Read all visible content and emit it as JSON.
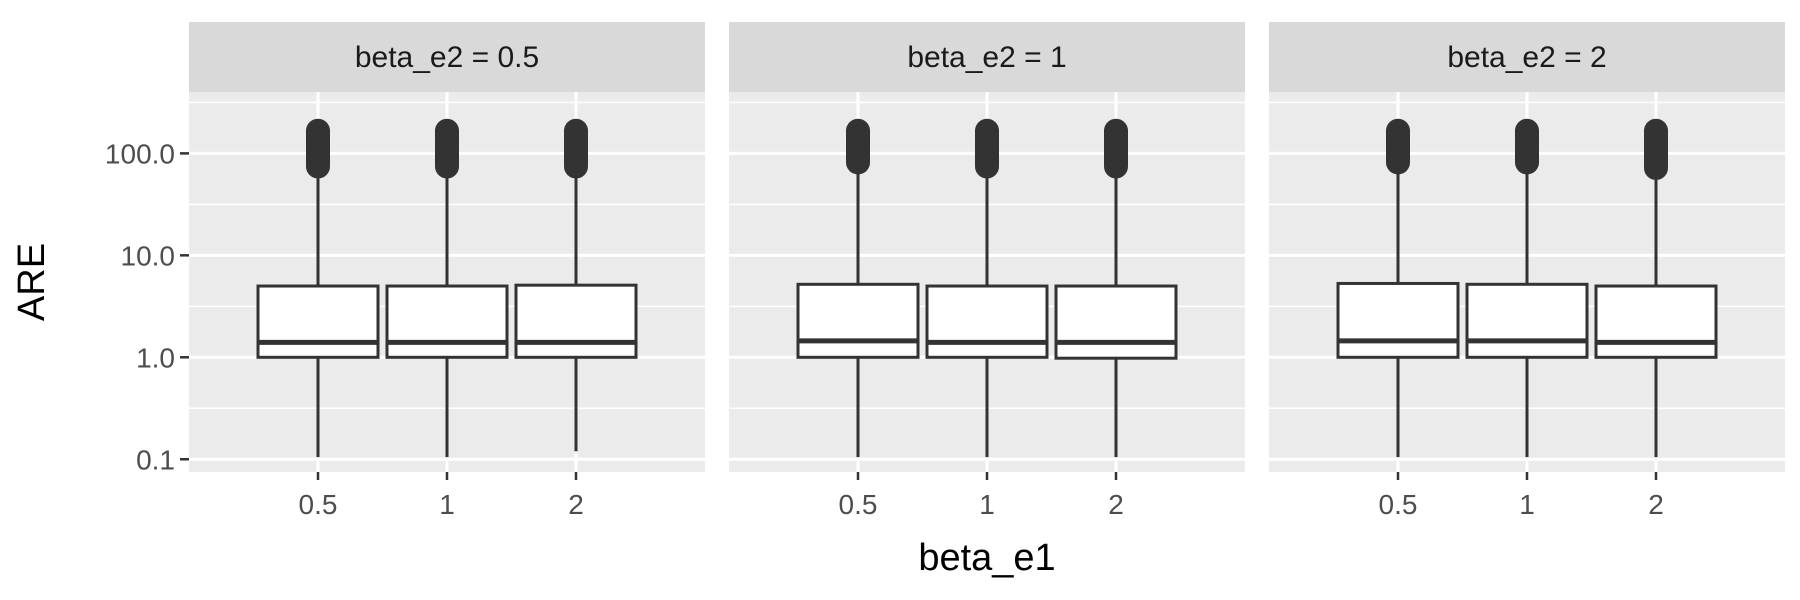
{
  "chart_data": {
    "type": "boxplot",
    "facet_variable": "beta_e2",
    "xlabel": "beta_e1",
    "ylabel": "ARE",
    "y_scale": "log10",
    "ylim": [
      0.075,
      400
    ],
    "y_ticks": [
      0.1,
      1.0,
      10.0,
      100.0
    ],
    "y_tick_labels": [
      "0.1",
      "1.0",
      "10.0",
      "100.0"
    ],
    "categories": [
      "0.5",
      "1",
      "2"
    ],
    "grid": true,
    "legend": "none",
    "colors": {
      "panel_bg": "#ebebeb",
      "strip_bg": "#d9d9d9",
      "grid": "#ffffff",
      "box_line": "#333333",
      "box_fill": "#ffffff",
      "outlier": "#333333"
    },
    "facets": [
      {
        "strip_label": "beta_e2 = 0.5",
        "boxes": [
          {
            "x": "0.5",
            "lower_whisker": 0.105,
            "q1": 1.0,
            "median": 1.4,
            "q3": 5.0,
            "upper_whisker": 62,
            "outlier_min": 62,
            "outlier_max": 200
          },
          {
            "x": "1",
            "lower_whisker": 0.105,
            "q1": 1.0,
            "median": 1.4,
            "q3": 5.0,
            "upper_whisker": 62,
            "outlier_min": 62,
            "outlier_max": 200
          },
          {
            "x": "2",
            "lower_whisker": 0.12,
            "q1": 1.0,
            "median": 1.4,
            "q3": 5.1,
            "upper_whisker": 62,
            "outlier_min": 62,
            "outlier_max": 200
          }
        ]
      },
      {
        "strip_label": "beta_e2 = 1",
        "boxes": [
          {
            "x": "0.5",
            "lower_whisker": 0.105,
            "q1": 1.0,
            "median": 1.45,
            "q3": 5.2,
            "upper_whisker": 68,
            "outlier_min": 68,
            "outlier_max": 200
          },
          {
            "x": "1",
            "lower_whisker": 0.105,
            "q1": 1.0,
            "median": 1.4,
            "q3": 5.0,
            "upper_whisker": 62,
            "outlier_min": 62,
            "outlier_max": 200
          },
          {
            "x": "2",
            "lower_whisker": 0.105,
            "q1": 0.98,
            "median": 1.4,
            "q3": 5.0,
            "upper_whisker": 62,
            "outlier_min": 62,
            "outlier_max": 200
          }
        ]
      },
      {
        "strip_label": "beta_e2 = 2",
        "boxes": [
          {
            "x": "0.5",
            "lower_whisker": 0.105,
            "q1": 1.0,
            "median": 1.45,
            "q3": 5.3,
            "upper_whisker": 68,
            "outlier_min": 68,
            "outlier_max": 200
          },
          {
            "x": "1",
            "lower_whisker": 0.105,
            "q1": 1.0,
            "median": 1.45,
            "q3": 5.2,
            "upper_whisker": 68,
            "outlier_min": 68,
            "outlier_max": 200
          },
          {
            "x": "2",
            "lower_whisker": 0.105,
            "q1": 1.0,
            "median": 1.4,
            "q3": 5.0,
            "upper_whisker": 60,
            "outlier_min": 60,
            "outlier_max": 200
          }
        ]
      }
    ]
  }
}
